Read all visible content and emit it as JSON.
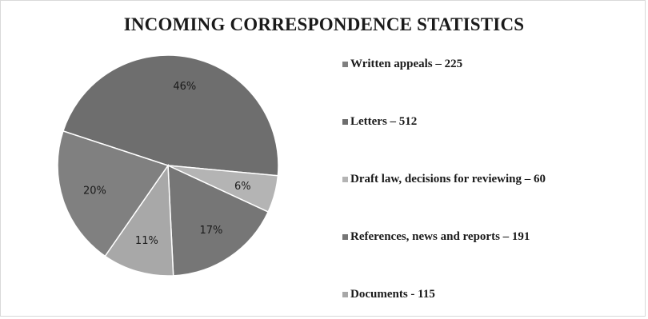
{
  "chart_data": {
    "type": "pie",
    "title": "INCOMING CORRESPONDENCE STATISTICS",
    "slices": [
      {
        "label": "Written appeals – 225",
        "value": 225,
        "percent_label": "20%",
        "color": "#808080"
      },
      {
        "label": "Letters – 512",
        "value": 512,
        "percent_label": "46%",
        "color": "#6e6e6e"
      },
      {
        "label": "Draft law, decisions for reviewing – 60",
        "value": 60,
        "percent_label": "6%",
        "color": "#b4b4b4"
      },
      {
        "label": "References, news and reports – 191",
        "value": 191,
        "percent_label": "17%",
        "color": "#767676"
      },
      {
        "label": "Documents - 115",
        "value": 115,
        "percent_label": "11%",
        "color": "#a8a8a8"
      }
    ],
    "pie_order": [
      1,
      2,
      3,
      4,
      0
    ],
    "legend_position": "right"
  }
}
